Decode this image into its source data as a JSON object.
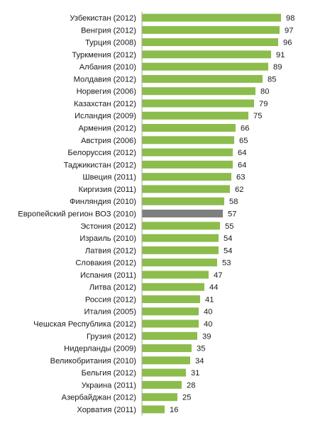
{
  "chart_data": {
    "type": "bar",
    "orientation": "horizontal",
    "title": "",
    "xlabel": "",
    "ylabel": "",
    "xlim": [
      0,
      105
    ],
    "grid": false,
    "legend": "none",
    "categories": [
      "Узбекистан (2012)",
      "Венгрия (2012)",
      "Турция (2008)",
      "Туркмения (2012)",
      "Албания (2010)",
      "Молдавия (2012)",
      "Норвегия (2006)",
      "Казахстан (2012)",
      "Исландия (2009)",
      "Армения (2012)",
      "Австрия (2006)",
      "Белоруссия (2012)",
      "Таджикистан (2012)",
      "Швеция (2011)",
      "Киргизия (2011)",
      "Финляндия (2010)",
      "Европейский регион ВОЗ (2010)",
      "Эстония (2012)",
      "Израиль (2010)",
      "Латвия (2012)",
      "Словакия (2012)",
      "Испания (2011)",
      "Литва (2012)",
      "Россия (2012)",
      "Италия (2005)",
      "Чешская Республика (2012)",
      "Грузия (2012)",
      "Нидерланды (2009)",
      "Великобритания (2010)",
      "Бельгия (2012)",
      "Украина (2011)",
      "Азербайджан (2012)",
      "Хорватия (2011)"
    ],
    "values": [
      98,
      97,
      96,
      91,
      89,
      85,
      80,
      79,
      75,
      66,
      65,
      64,
      64,
      63,
      62,
      58,
      57,
      55,
      54,
      54,
      53,
      47,
      44,
      41,
      40,
      40,
      39,
      35,
      34,
      31,
      28,
      25,
      16
    ],
    "highlight_category": "Европейский регион ВОЗ (2010)",
    "colors": {
      "bar": "#8cbc4c",
      "bar_edge": "#7aa83e",
      "highlight": "#7f7f7f",
      "axis": "#a6a6a6",
      "text": "#1a1a1a"
    }
  }
}
